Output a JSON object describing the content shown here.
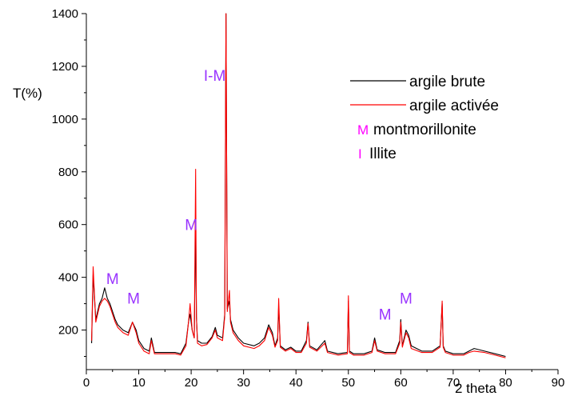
{
  "chart_data": {
    "type": "line",
    "ylabel": "T(%)",
    "xlabel": "2 theta",
    "xlim": [
      0,
      90
    ],
    "ylim": [
      50,
      1400
    ],
    "xticks": [
      0,
      10,
      20,
      30,
      40,
      50,
      60,
      70,
      80,
      90
    ],
    "yticks": [
      200,
      400,
      600,
      800,
      1000,
      1200,
      1400
    ],
    "grid": false,
    "legend_position": "top-right",
    "series": [
      {
        "name": "argile brute",
        "color": "#000000",
        "x": [
          1,
          1.3,
          1.8,
          2.5,
          3,
          3.5,
          4,
          4.5,
          5,
          5.5,
          6,
          7,
          8,
          8.8,
          9.5,
          10,
          11,
          12,
          12.4,
          13,
          15,
          17,
          18,
          19,
          19.5,
          19.8,
          20.2,
          20.6,
          20.85,
          21,
          21.2,
          22,
          23,
          24,
          24.6,
          25,
          26,
          26.4,
          26.65,
          26.9,
          27.3,
          27.5,
          28,
          29,
          30,
          32,
          33,
          34,
          34.8,
          35.5,
          36,
          36.5,
          36.7,
          37,
          38,
          39,
          40,
          41,
          42,
          42.3,
          42.6,
          44,
          45.5,
          46,
          48,
          49.8,
          50,
          50.2,
          51,
          53,
          54.5,
          55,
          55.5,
          57,
          59,
          59.8,
          60,
          60.3,
          61,
          61.5,
          62,
          64,
          66,
          67.5,
          67.9,
          68.1,
          68.5,
          70,
          72,
          73,
          74,
          76,
          78,
          80
        ],
        "y": [
          150,
          410,
          240,
          300,
          320,
          360,
          320,
          300,
          270,
          240,
          220,
          200,
          190,
          230,
          200,
          160,
          130,
          120,
          170,
          115,
          115,
          115,
          110,
          150,
          230,
          260,
          200,
          170,
          620,
          250,
          160,
          150,
          150,
          175,
          210,
          180,
          170,
          260,
          1400,
          280,
          310,
          240,
          200,
          170,
          150,
          140,
          150,
          170,
          220,
          190,
          140,
          170,
          290,
          140,
          125,
          135,
          120,
          120,
          160,
          230,
          140,
          125,
          160,
          120,
          110,
          115,
          310,
          120,
          110,
          110,
          120,
          170,
          125,
          115,
          115,
          160,
          240,
          140,
          200,
          180,
          140,
          120,
          120,
          140,
          300,
          140,
          120,
          110,
          110,
          120,
          130,
          120,
          110,
          100
        ],
        "values_approximate": true
      },
      {
        "name": "argile activée",
        "color": "#ff0000",
        "x": [
          1,
          1.3,
          1.8,
          2.5,
          3,
          3.5,
          4,
          4.5,
          5,
          5.5,
          6,
          7,
          8,
          8.8,
          9.5,
          10,
          11,
          12,
          12.4,
          13,
          15,
          17,
          18,
          19,
          19.5,
          19.8,
          20.2,
          20.6,
          20.85,
          21,
          21.2,
          22,
          23,
          24,
          24.6,
          25,
          26,
          26.4,
          26.65,
          26.9,
          27.3,
          27.5,
          28,
          29,
          30,
          32,
          33,
          34,
          34.8,
          35.5,
          36,
          36.5,
          36.7,
          37,
          38,
          39,
          40,
          41,
          42,
          42.3,
          42.6,
          44,
          45.5,
          46,
          48,
          49.8,
          50,
          50.2,
          51,
          53,
          54.5,
          55,
          55.5,
          57,
          59,
          59.8,
          60,
          60.3,
          61,
          61.5,
          62,
          64,
          66,
          67.5,
          67.9,
          68.1,
          68.5,
          70,
          72,
          73,
          74,
          76,
          78,
          80
        ],
        "y": [
          160,
          440,
          230,
          290,
          310,
          320,
          310,
          290,
          260,
          230,
          210,
          190,
          180,
          230,
          190,
          150,
          120,
          110,
          160,
          110,
          110,
          110,
          105,
          140,
          230,
          300,
          200,
          170,
          810,
          250,
          150,
          140,
          145,
          170,
          200,
          170,
          160,
          250,
          1400,
          270,
          350,
          230,
          190,
          160,
          140,
          130,
          140,
          160,
          210,
          180,
          135,
          160,
          320,
          135,
          120,
          130,
          115,
          115,
          150,
          225,
          135,
          120,
          150,
          115,
          105,
          110,
          330,
          115,
          105,
          105,
          115,
          160,
          120,
          110,
          110,
          150,
          230,
          135,
          190,
          170,
          130,
          115,
          115,
          135,
          310,
          135,
          115,
          105,
          105,
          115,
          120,
          115,
          105,
          95
        ],
        "values_approximate": true
      }
    ],
    "legend_extra": [
      {
        "marker": "M",
        "text": "montmorillonite"
      },
      {
        "marker": "I",
        "text": "Illite"
      }
    ],
    "annotations": [
      {
        "text": "M",
        "x": 5,
        "y": 375
      },
      {
        "text": "M",
        "x": 9,
        "y": 300
      },
      {
        "text": "M",
        "x": 20,
        "y": 580
      },
      {
        "text": "I-M",
        "x": 24.5,
        "y": 1145
      },
      {
        "text": "M",
        "x": 57,
        "y": 240
      },
      {
        "text": "M",
        "x": 61,
        "y": 300
      }
    ]
  }
}
